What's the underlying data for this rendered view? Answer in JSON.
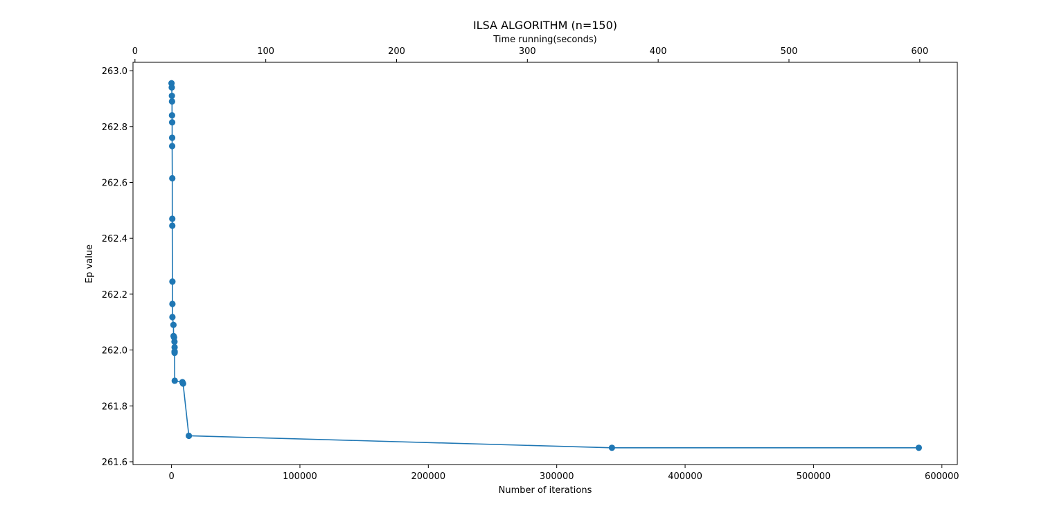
{
  "chart_data": {
    "type": "line",
    "title": "ILSA ALGORITHM (n=150)",
    "xlabel": "Number of iterations",
    "ylabel": "Ep value",
    "top_xlabel": "Time running(seconds)",
    "xlim": [
      -30000,
      612000
    ],
    "ylim": [
      261.59,
      263.03
    ],
    "top_xlim": [
      -1.5,
      628.7
    ],
    "x_ticks": [
      0,
      100000,
      200000,
      300000,
      400000,
      500000,
      600000
    ],
    "x_tick_labels": [
      "0",
      "100000",
      "200000",
      "300000",
      "400000",
      "500000",
      "600000"
    ],
    "y_ticks": [
      261.6,
      261.8,
      262.0,
      262.2,
      262.4,
      262.6,
      262.8,
      263.0
    ],
    "y_tick_labels": [
      "261.6",
      "261.8",
      "262.0",
      "262.2",
      "262.4",
      "262.6",
      "262.8",
      "263.0"
    ],
    "top_x_ticks": [
      0,
      100,
      200,
      300,
      400,
      500,
      600
    ],
    "top_x_tick_labels": [
      "0",
      "100",
      "200",
      "300",
      "400",
      "500",
      "600"
    ],
    "series": [
      {
        "color": "#1f77b4",
        "marker": "circle",
        "points": [
          {
            "x": 0,
            "y": 262.955
          },
          {
            "x": 200,
            "y": 262.94
          },
          {
            "x": 300,
            "y": 262.91
          },
          {
            "x": 400,
            "y": 262.89
          },
          {
            "x": 400,
            "y": 262.84
          },
          {
            "x": 500,
            "y": 262.815
          },
          {
            "x": 500,
            "y": 262.76
          },
          {
            "x": 500,
            "y": 262.73
          },
          {
            "x": 600,
            "y": 262.615
          },
          {
            "x": 600,
            "y": 262.47
          },
          {
            "x": 600,
            "y": 262.445
          },
          {
            "x": 700,
            "y": 262.245
          },
          {
            "x": 700,
            "y": 262.165
          },
          {
            "x": 700,
            "y": 262.118
          },
          {
            "x": 1500,
            "y": 262.09
          },
          {
            "x": 1600,
            "y": 262.05
          },
          {
            "x": 2000,
            "y": 262.045
          },
          {
            "x": 2300,
            "y": 262.03
          },
          {
            "x": 2400,
            "y": 262.01
          },
          {
            "x": 2400,
            "y": 261.995
          },
          {
            "x": 2400,
            "y": 261.99
          },
          {
            "x": 2500,
            "y": 261.89
          },
          {
            "x": 8500,
            "y": 261.885
          },
          {
            "x": 9000,
            "y": 261.88
          },
          {
            "x": 13500,
            "y": 261.693
          },
          {
            "x": 343000,
            "y": 261.65
          },
          {
            "x": 582000,
            "y": 261.65
          }
        ]
      }
    ],
    "grid": false
  }
}
